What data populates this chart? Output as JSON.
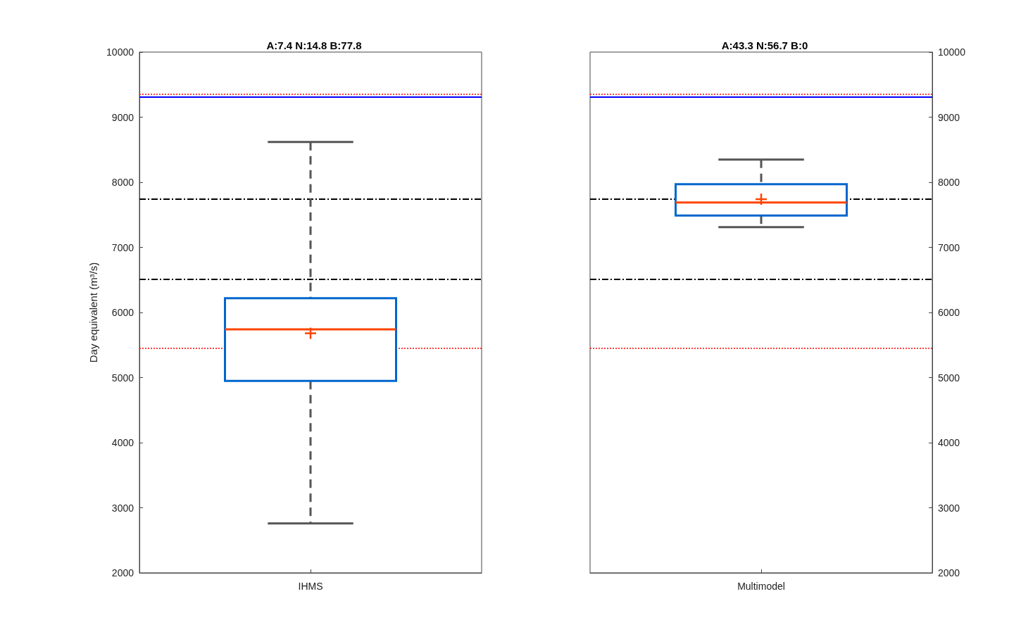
{
  "chart_data": [
    {
      "type": "box",
      "title": "A:7.4 N:14.8 B:77.8",
      "ylabel": "Day equivalent (m³/s)",
      "categories": [
        "IHMS"
      ],
      "series": [
        {
          "color": "#0066cc",
          "boxes": [
            {
              "low": 2760,
              "q1": 4950,
              "median": 5740,
              "q3": 6220,
              "high": 8620,
              "mean": 5680
            }
          ]
        }
      ],
      "ylim": [
        2000,
        10000
      ],
      "yticks": [
        2000,
        3000,
        4000,
        5000,
        6000,
        7000,
        8000,
        9000,
        10000
      ],
      "ref_lines": [
        {
          "axis": "y",
          "value": 9350,
          "color": "#ff0000",
          "line_style": "dotted"
        },
        {
          "axis": "y",
          "value": 9310,
          "color": "#0000ff",
          "line_style": "solid"
        },
        {
          "axis": "y",
          "value": 7740,
          "color": "#000000",
          "line_style": "dashed"
        },
        {
          "axis": "y",
          "value": 6510,
          "color": "#000000",
          "line_style": "dashed"
        },
        {
          "axis": "y",
          "value": 5450,
          "color": "#ff0000",
          "line_style": "dotted"
        }
      ]
    },
    {
      "type": "box",
      "title": "A:43.3 N:56.7 B:0",
      "categories": [
        "Multimodel"
      ],
      "series": [
        {
          "color": "#0066cc",
          "boxes": [
            {
              "low": 7310,
              "q1": 7490,
              "median": 7690,
              "q3": 7970,
              "high": 8350,
              "mean": 7740
            }
          ]
        }
      ],
      "ylim": [
        2000,
        10000
      ],
      "yticks": [
        2000,
        3000,
        4000,
        5000,
        6000,
        7000,
        8000,
        9000,
        10000
      ],
      "ref_lines": [
        {
          "axis": "y",
          "value": 9350,
          "color": "#ff0000",
          "line_style": "dotted"
        },
        {
          "axis": "y",
          "value": 9310,
          "color": "#0000ff",
          "line_style": "solid"
        },
        {
          "axis": "y",
          "value": 7740,
          "color": "#000000",
          "line_style": "dashed"
        },
        {
          "axis": "y",
          "value": 6510,
          "color": "#000000",
          "line_style": "dashed"
        },
        {
          "axis": "y",
          "value": 5450,
          "color": "#ff0000",
          "line_style": "dotted"
        }
      ]
    }
  ]
}
